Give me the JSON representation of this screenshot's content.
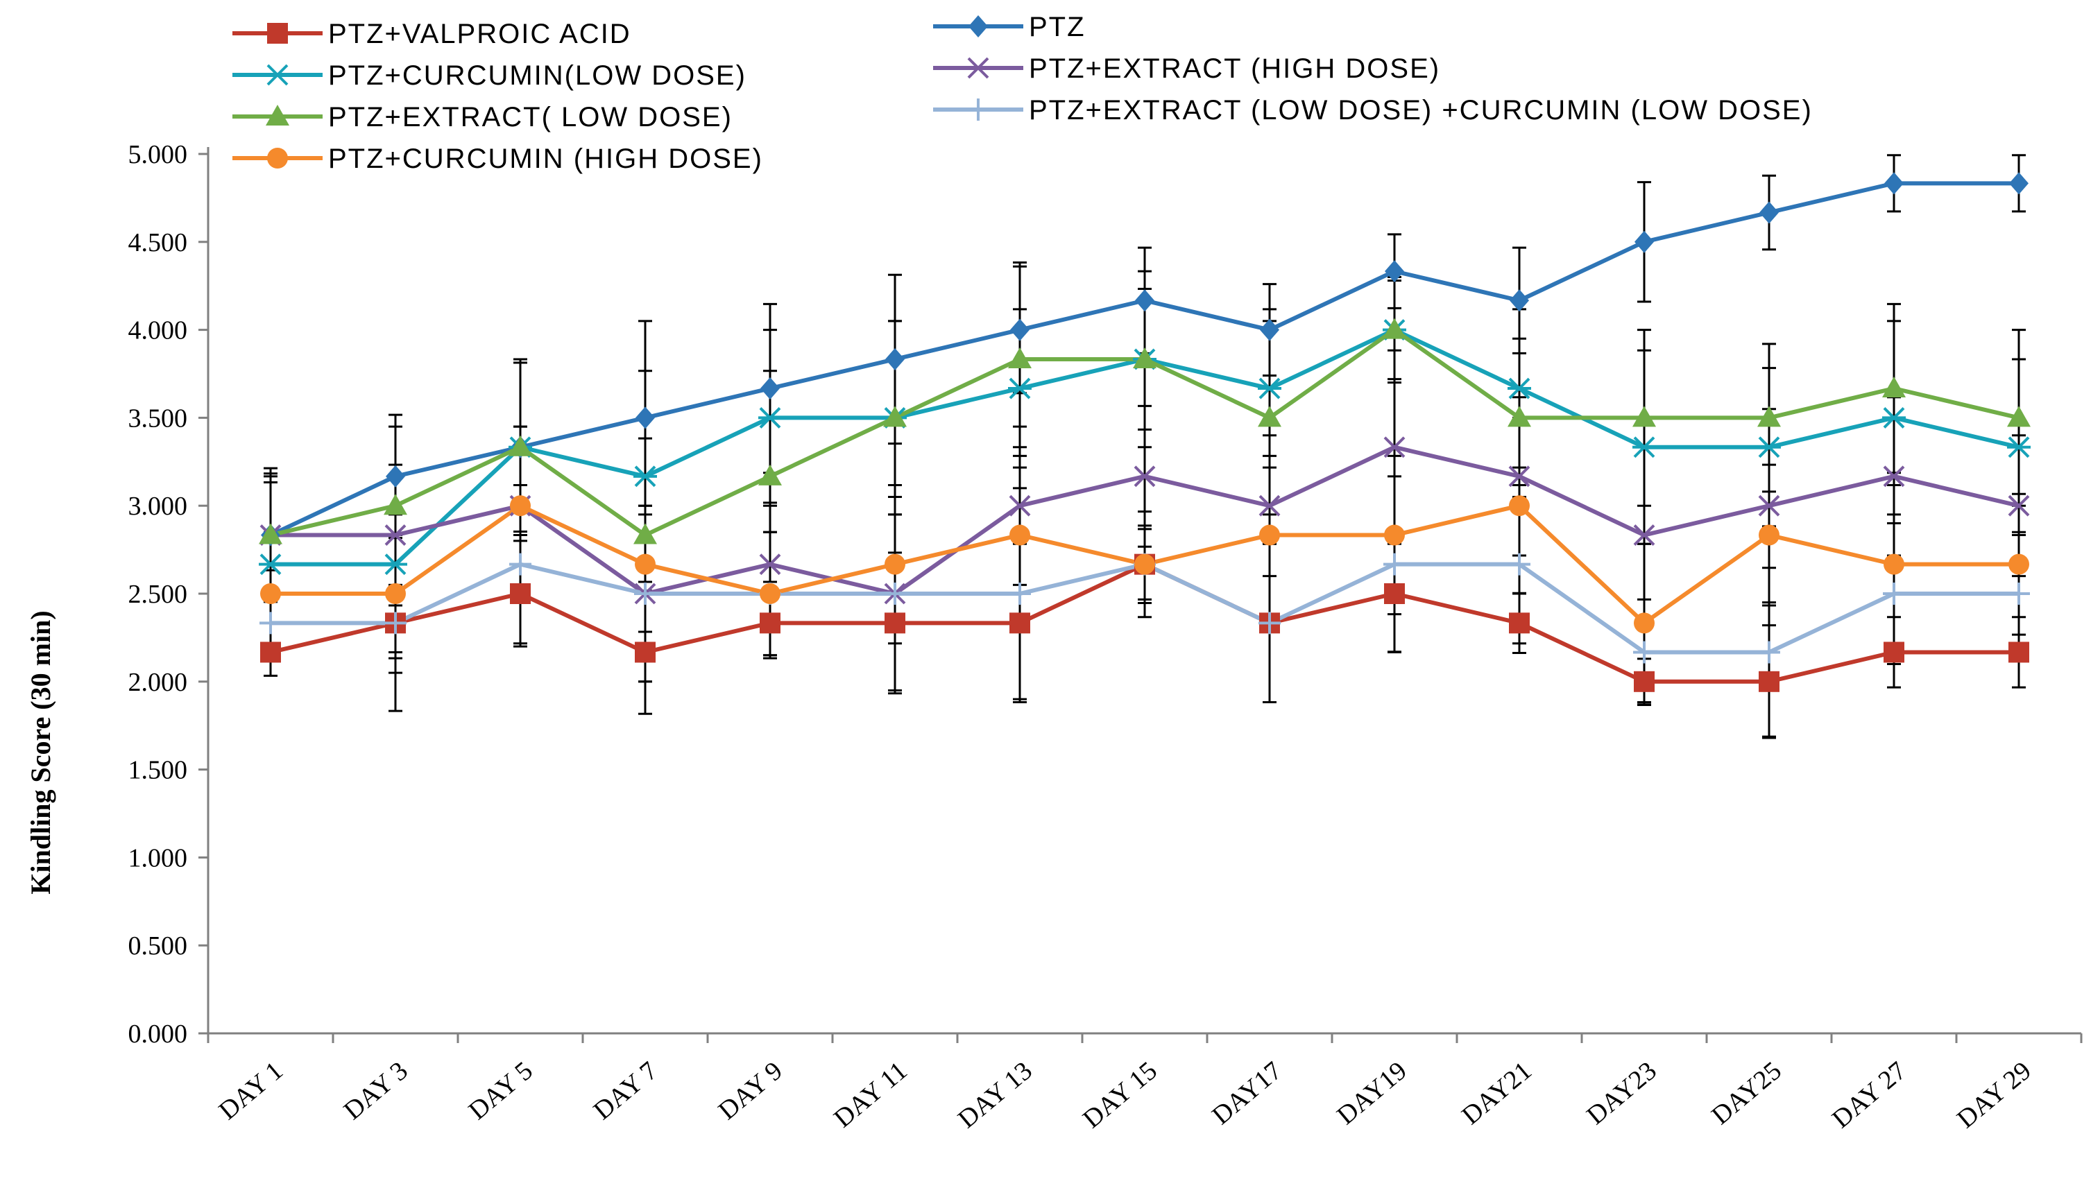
{
  "chart_data": {
    "type": "line",
    "title": "",
    "xlabel": "",
    "ylabel": "Kindling Score (30 min)",
    "ylim": [
      0,
      5
    ],
    "yticks": [
      "0.000",
      "0.500",
      "1.000",
      "1.500",
      "2.000",
      "2.500",
      "3.000",
      "3.500",
      "4.000",
      "4.500",
      "5.000"
    ],
    "categories": [
      "DAY 1",
      "DAY 3",
      "DAY 5",
      "DAY 7",
      "DAY 9",
      "DAY 11",
      "DAY 13",
      "DAY 15",
      "DAY17",
      "DAY19",
      "DAY21",
      "DAY23",
      "DAY25",
      "DAY 27",
      "DAY 29"
    ],
    "legend_position": "top-left",
    "series": [
      {
        "name": "PTZ+VALPROIC ACID",
        "color": "#c0392b",
        "marker": "square",
        "values": [
          2.167,
          2.333,
          2.5,
          2.167,
          2.333,
          2.333,
          2.333,
          2.667,
          2.333,
          2.5,
          2.333,
          2.0,
          2.0,
          2.167,
          2.167
        ],
        "errors": [
          0.05,
          0.2,
          0.3,
          0.35,
          0.2,
          0.4,
          0.45,
          0.22,
          0.45,
          0.33,
          0.17,
          0.13,
          0.32,
          0.2,
          0.2
        ]
      },
      {
        "name": "PTZ",
        "color": "#2e75b6",
        "marker": "diamond",
        "values": [
          2.833,
          3.167,
          3.333,
          3.5,
          3.667,
          3.833,
          4.0,
          4.167,
          4.0,
          4.333,
          4.167,
          4.5,
          4.667,
          4.833,
          4.833
        ],
        "errors": [
          0.38,
          0.35,
          0.48,
          0.55,
          0.48,
          0.48,
          0.36,
          0.3,
          0.26,
          0.21,
          0.3,
          0.34,
          0.21,
          0.16,
          0.16
        ]
      },
      {
        "name": "PTZ+CURCUMIN(LOW DOSE)",
        "color": "#17a2b8",
        "marker": "asterisk",
        "values": [
          2.667,
          2.667,
          3.333,
          3.167,
          3.5,
          3.5,
          3.667,
          3.833,
          3.667,
          4.0,
          3.667,
          3.333,
          3.333,
          3.5,
          3.333
        ],
        "errors": [
          0.5,
          0.5,
          0.5,
          0.6,
          0.5,
          0.55,
          0.45,
          0.4,
          0.45,
          0.3,
          0.45,
          0.55,
          0.45,
          0.55,
          0.5
        ]
      },
      {
        "name": "PTZ+EXTRACT (HIGH DOSE)",
        "color": "#7b5b9e",
        "marker": "x",
        "values": [
          2.833,
          2.833,
          3.0,
          2.5,
          2.667,
          2.5,
          3.0,
          3.167,
          3.0,
          3.333,
          3.167,
          2.833,
          3.0,
          3.167,
          3.0
        ],
        "errors": [
          0.3,
          0.4,
          0.45,
          0.5,
          0.35,
          0.55,
          0.45,
          0.4,
          0.4,
          0.55,
          0.45,
          0.5,
          0.55,
          0.45,
          0.4
        ]
      },
      {
        "name": "PTZ+EXTRACT( LOW DOSE)",
        "color": "#70ad47",
        "marker": "triangle",
        "values": [
          2.833,
          3.0,
          3.333,
          2.833,
          3.167,
          3.5,
          3.833,
          3.833,
          3.5,
          4.0,
          3.5,
          3.5,
          3.5,
          3.667,
          3.5
        ],
        "errors": [
          0.35,
          0.45,
          0.5,
          0.55,
          0.6,
          0.55,
          0.55,
          0.5,
          0.55,
          0.28,
          0.45,
          0.5,
          0.42,
          0.48,
          0.5
        ]
      },
      {
        "name": "PTZ+EXTRACT (LOW DOSE) +CURCUMIN (LOW DOSE)",
        "color": "#95b3d7",
        "marker": "plus",
        "values": [
          2.333,
          2.333,
          2.667,
          2.5,
          2.5,
          2.5,
          2.5,
          2.667,
          2.333,
          2.667,
          2.667,
          2.167,
          2.167,
          2.5,
          2.5
        ],
        "errors": [
          0.3,
          0.5,
          0.45,
          0.5,
          0.35,
          0.55,
          0.6,
          0.2,
          0.45,
          0.5,
          0.45,
          0.3,
          0.48,
          0.4,
          0.35
        ]
      },
      {
        "name": "PTZ+CURCUMIN (HIGH DOSE)",
        "color": "#f58a2c",
        "marker": "circle",
        "values": [
          2.5,
          2.5,
          3.0,
          2.667,
          2.5,
          2.667,
          2.833,
          2.667,
          2.833,
          2.833,
          3.0,
          2.333,
          2.833,
          2.667,
          2.667
        ],
        "errors": [
          0.35,
          0.45,
          0.45,
          0.5,
          0.35,
          0.45,
          0.5,
          0.3,
          0.45,
          0.45,
          0.5,
          0.45,
          0.4,
          0.45,
          0.4
        ]
      }
    ]
  }
}
